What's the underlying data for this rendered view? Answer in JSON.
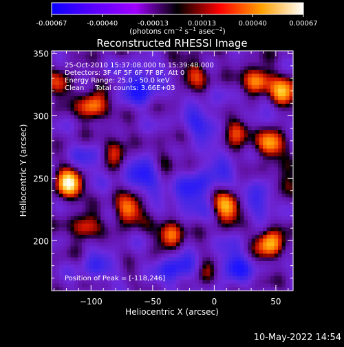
{
  "chart_data": {
    "type": "heatmap",
    "title": "Reconstructed RHESSI Image",
    "xlabel": "Heliocentric X (arcsec)",
    "ylabel": "Heliocentric Y (arcsec)",
    "xlim": [
      -132,
      64
    ],
    "ylim": [
      160,
      352
    ],
    "xticks": [
      -100,
      -50,
      0,
      50
    ],
    "xtick_labels": [
      "−100",
      "−50",
      "0",
      "50"
    ],
    "yticks": [
      200,
      250,
      300,
      350
    ],
    "ytick_labels": [
      "200",
      "250",
      "300",
      "350"
    ],
    "colorbar": {
      "ticks": [
        -0.00067,
        -0.0004,
        -0.00013,
        0.00013,
        0.0004,
        0.00067
      ],
      "tick_labels": [
        "-0.00067",
        "-0.00040",
        "-0.00013",
        "0.00013",
        "0.00040",
        "0.00067"
      ],
      "unit_parts": [
        "(photons cm",
        "−2",
        " s",
        "−1",
        " asec",
        "−2",
        ")"
      ],
      "colors": [
        "#0a00ff",
        "#5a00ff",
        "#a000ff",
        "#000000",
        "#ff0000",
        "#ffa000",
        "#ffffff"
      ]
    },
    "annotations": [
      "25-Oct-2010 15:37:08.000 to 15:39:48.000",
      "Detectors: 3F 4F 5F 6F 7F 8F, Att 0",
      "Energy Range: 25.0 - 50.0 keV",
      "Clean     Total counts: 3.66E+03"
    ],
    "peak_label": "Position of Peak = [-118,246]",
    "peak": [
      -118,
      246
    ],
    "hot_spots": [
      {
        "x": -118,
        "y": 246,
        "intensity": 1.0
      },
      {
        "x": -98,
        "y": 308,
        "intensity": 0.72
      },
      {
        "x": 35,
        "y": 328,
        "intensity": 0.78
      },
      {
        "x": 55,
        "y": 318,
        "intensity": 0.8
      },
      {
        "x": 45,
        "y": 277,
        "intensity": 0.75
      },
      {
        "x": 20,
        "y": 290,
        "intensity": 0.6
      },
      {
        "x": 10,
        "y": 228,
        "intensity": 0.82
      },
      {
        "x": -35,
        "y": 205,
        "intensity": 0.72
      },
      {
        "x": -70,
        "y": 225,
        "intensity": 0.7
      },
      {
        "x": -80,
        "y": 272,
        "intensity": 0.52
      },
      {
        "x": 45,
        "y": 198,
        "intensity": 0.82
      },
      {
        "x": -105,
        "y": 210,
        "intensity": 0.55
      },
      {
        "x": -15,
        "y": 335,
        "intensity": 0.45
      },
      {
        "x": -125,
        "y": 325,
        "intensity": 0.4
      },
      {
        "x": 55,
        "y": 245,
        "intensity": 0.5
      },
      {
        "x": -5,
        "y": 175,
        "intensity": 0.42
      },
      {
        "x": -40,
        "y": 265,
        "intensity": 0.4
      }
    ],
    "cold_spots": [
      {
        "x": -60,
        "y": 325,
        "intensity": -0.9
      },
      {
        "x": -55,
        "y": 255,
        "intensity": -0.85
      },
      {
        "x": -20,
        "y": 235,
        "intensity": -0.75
      },
      {
        "x": -30,
        "y": 178,
        "intensity": -0.8
      },
      {
        "x": 15,
        "y": 180,
        "intensity": -0.85
      },
      {
        "x": 40,
        "y": 235,
        "intensity": -0.7
      },
      {
        "x": -10,
        "y": 295,
        "intensity": -0.65
      },
      {
        "x": -95,
        "y": 180,
        "intensity": -0.5
      },
      {
        "x": -100,
        "y": 265,
        "intensity": -0.45
      },
      {
        "x": 0,
        "y": 255,
        "intensity": -0.55
      },
      {
        "x": 35,
        "y": 305,
        "intensity": -0.4
      }
    ]
  },
  "timestamp": "10-May-2022 14:54"
}
